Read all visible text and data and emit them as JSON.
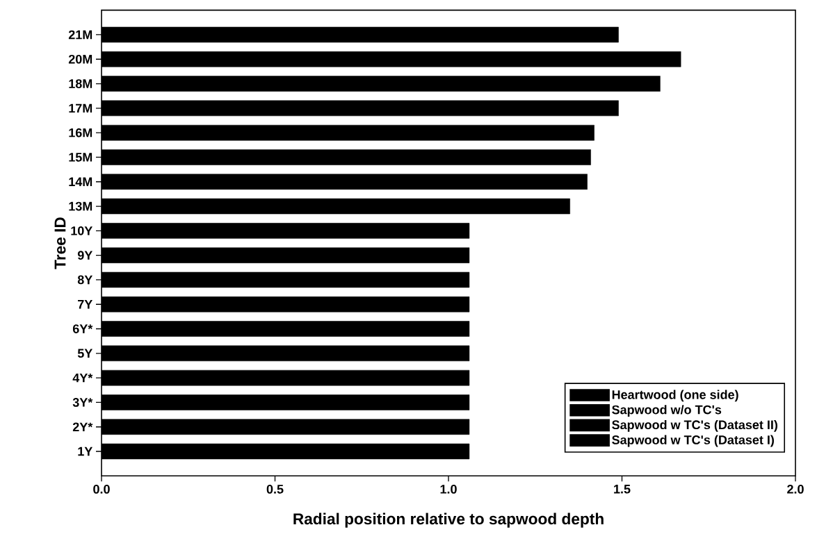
{
  "chart_data": {
    "type": "bar",
    "orientation": "horizontal",
    "xlabel": "Radial position relative to sapwood depth",
    "ylabel": "Tree ID",
    "categories": [
      "21M",
      "20M",
      "18M",
      "17M",
      "16M",
      "15M",
      "14M",
      "13M",
      "10Y",
      "9Y",
      "8Y",
      "7Y",
      "6Y*",
      "5Y",
      "4Y*",
      "3Y*",
      "2Y*",
      "1Y"
    ],
    "series": [
      {
        "name": "Heartwood (one side)",
        "color": "#000000",
        "values": [
          1.49,
          1.67,
          1.61,
          1.49,
          1.42,
          1.41,
          1.4,
          1.35,
          1.06,
          1.06,
          1.06,
          1.06,
          1.06,
          1.06,
          1.06,
          1.06,
          1.06,
          1.06
        ]
      },
      {
        "name": "Sapwood w/o TC's",
        "color": "#000000",
        "values": [
          null,
          null,
          null,
          null,
          null,
          null,
          null,
          null,
          null,
          null,
          null,
          null,
          null,
          null,
          null,
          null,
          null,
          null
        ]
      },
      {
        "name": "Sapwood w TC's (Dataset II)",
        "color": "#000000",
        "values": [
          null,
          null,
          null,
          null,
          null,
          null,
          null,
          null,
          null,
          null,
          null,
          null,
          null,
          null,
          null,
          null,
          null,
          null
        ]
      },
      {
        "name": "Sapwood w TC's (Dataset I)",
        "color": "#000000",
        "values": [
          null,
          null,
          null,
          null,
          null,
          null,
          null,
          null,
          null,
          null,
          null,
          null,
          null,
          null,
          null,
          null,
          null,
          null
        ]
      }
    ],
    "xlim": [
      0,
      2
    ],
    "xticks": [
      {
        "value": 0,
        "label": "0.0"
      },
      {
        "value": 0.5,
        "label": "0.5"
      },
      {
        "value": 1,
        "label": "1.0"
      },
      {
        "value": 1.5,
        "label": "1.5"
      },
      {
        "value": 2,
        "label": "2.0"
      }
    ],
    "legend": "bottom right"
  }
}
